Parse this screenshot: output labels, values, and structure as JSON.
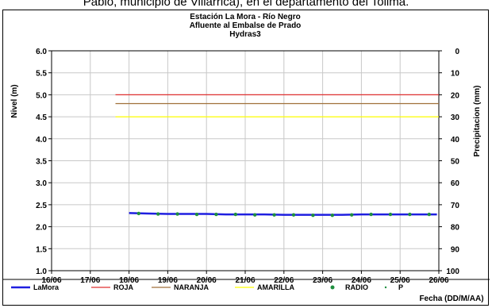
{
  "page": {
    "top_text": "Pablo, municipio de Villarrica), en el departamento del Tolima."
  },
  "chart_data": {
    "type": "line",
    "title": [
      "Estación La Mora - Río Negro",
      "Afluente al Embalse de Prado",
      "Hydras3"
    ],
    "xlabel": "Fecha (DD/M/AA)",
    "ylabel": "Nivel (m)",
    "y2label": "Precipitacion (mm)",
    "xlim": [
      0,
      10
    ],
    "x_ticks": [
      "16/06",
      "17/06",
      "18/06",
      "19/06",
      "20/06",
      "21/06",
      "22/06",
      "23/06",
      "24/06",
      "25/06",
      "26/06"
    ],
    "ylim": [
      1.0,
      6.0
    ],
    "y_ticks": [
      "1.0",
      "1.5",
      "2.0",
      "2.5",
      "3.0",
      "3.5",
      "4.0",
      "4.5",
      "5.0",
      "5.5",
      "6.0"
    ],
    "y2lim": [
      100,
      0
    ],
    "y2_ticks": [
      "100",
      "90",
      "80",
      "70",
      "60",
      "50",
      "40",
      "30",
      "20",
      "10",
      "0"
    ],
    "grid": true,
    "legend_position": "bottom",
    "series": [
      {
        "name": "LaMora",
        "color": "#1f1fe0",
        "style": "line",
        "x": [
          2.0,
          2.5,
          3.0,
          3.5,
          4.0,
          4.5,
          5.0,
          5.5,
          6.0,
          6.5,
          7.0,
          7.5,
          8.0,
          8.5,
          9.0,
          9.5,
          9.95
        ],
        "values": [
          2.31,
          2.3,
          2.29,
          2.29,
          2.29,
          2.28,
          2.28,
          2.28,
          2.27,
          2.27,
          2.27,
          2.27,
          2.28,
          2.28,
          2.28,
          2.28,
          2.28
        ]
      },
      {
        "name": "ROJA",
        "color": "#e03030",
        "style": "line",
        "x": [
          1.65,
          10.0
        ],
        "values": [
          5.0,
          5.0
        ]
      },
      {
        "name": "NARANJA",
        "color": "#a0703a",
        "style": "line",
        "x": [
          1.65,
          10.0
        ],
        "values": [
          4.8,
          4.8
        ]
      },
      {
        "name": "AMARILLA",
        "color": "#ffff00",
        "style": "line",
        "x": [
          1.65,
          10.0
        ],
        "values": [
          4.5,
          4.5
        ]
      },
      {
        "name": "RADIO",
        "color": "#1f8f3f",
        "style": "marker",
        "x": [
          2.25,
          2.75,
          3.25,
          3.75,
          4.25,
          4.75,
          5.25,
          5.75,
          6.25,
          6.75,
          7.25,
          7.75,
          8.25,
          8.75,
          9.25,
          9.75
        ],
        "values": [
          2.3,
          2.29,
          2.29,
          2.28,
          2.28,
          2.28,
          2.27,
          2.27,
          2.27,
          2.26,
          2.26,
          2.27,
          2.28,
          2.28,
          2.28,
          2.28
        ]
      },
      {
        "name": "P",
        "color": "#1f8f3f",
        "style": "dot",
        "x": [],
        "values": []
      }
    ]
  }
}
